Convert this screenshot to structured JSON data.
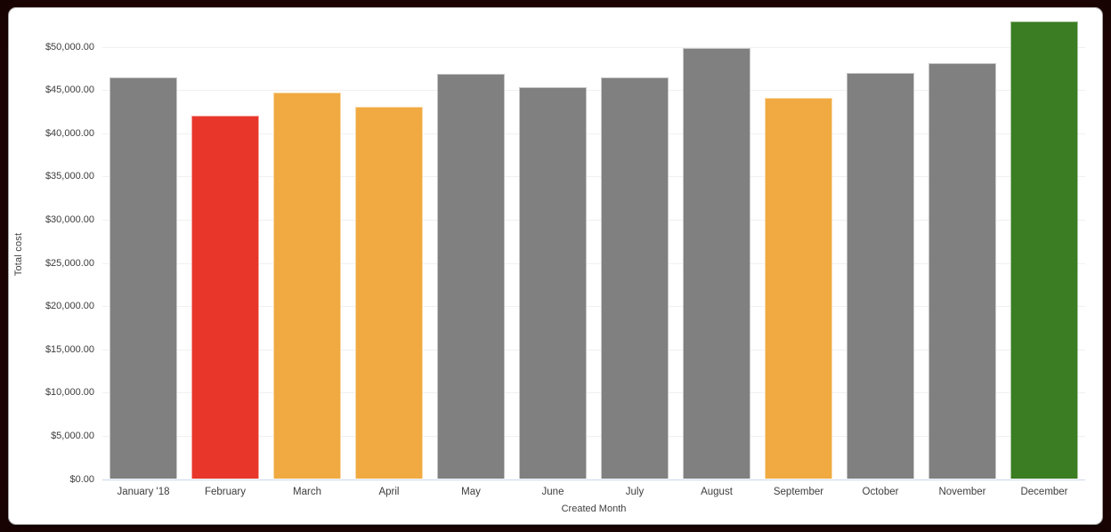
{
  "page": {
    "background_color": "#2d0707",
    "card_color": "#ffffff"
  },
  "chart_data": {
    "type": "bar",
    "title": "",
    "xlabel": "Created Month",
    "ylabel": "Total cost",
    "categories": [
      "January '18",
      "February",
      "March",
      "April",
      "May",
      "June",
      "July",
      "August",
      "September",
      "October",
      "November",
      "December"
    ],
    "values": [
      46500,
      42000,
      44700,
      43100,
      46900,
      45300,
      46400,
      49800,
      44100,
      47000,
      48100,
      52900
    ],
    "bar_colors": [
      "#808080",
      "#e8362b",
      "#f0aa41",
      "#f0aa41",
      "#808080",
      "#808080",
      "#808080",
      "#808080",
      "#f0aa41",
      "#808080",
      "#808080",
      "#3a7d22"
    ],
    "ylim": [
      0,
      50000
    ],
    "y_tick_step": 5000,
    "y_tick_labels": [
      "$0.00",
      "$5,000.00",
      "$10,000.00",
      "$15,000.00",
      "$20,000.00",
      "$25,000.00",
      "$30,000.00",
      "$35,000.00",
      "$40,000.00",
      "$45,000.00",
      "$50,000.00"
    ],
    "grid": "horizontal-on",
    "legend": "none",
    "colors": {
      "grid_line": "#f0f0f0",
      "axis_line": "#ccd6eb",
      "label_text": "#3d3d3d",
      "default_bar": "#808080",
      "highlight_red": "#e8362b",
      "highlight_orange": "#f0aa41",
      "highlight_green": "#3a7d22"
    }
  }
}
